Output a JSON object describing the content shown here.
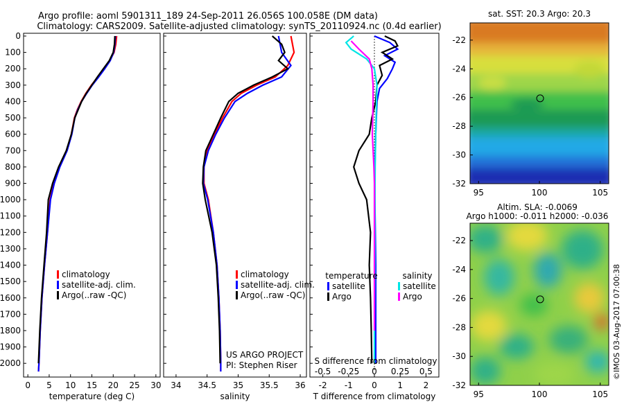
{
  "header": {
    "line1": "Argo profile: aoml 5901311_189 24-Sep-2011 26.056S 100.058E (DM data)",
    "line2": "Climatology: CARS2009. Satellite-adjusted climatology: synTS_20110924.nc (0.4d earlier)"
  },
  "footer_stamp": "©IMOS 03-Aug-2017 07:00:38",
  "colors": {
    "climatology": "#ff0000",
    "satellite": "#0000ff",
    "argo": "#000000",
    "s_satellite": "#00e5e5",
    "s_argo": "#ff00ff"
  },
  "chart_data": [
    {
      "type": "line",
      "panel": "temperature",
      "xlabel": "temperature (deg C)",
      "ylabel": "",
      "xlim": [
        -1,
        31
      ],
      "ylim": [
        2050,
        0
      ],
      "xticks": [
        "0",
        "5",
        "10",
        "15",
        "20",
        "25",
        "30"
      ],
      "yticks": [
        "0",
        "100",
        "200",
        "300",
        "400",
        "500",
        "600",
        "700",
        "800",
        "900",
        "1000",
        "1100",
        "1200",
        "1300",
        "1400",
        "1500",
        "1600",
        "1700",
        "1800",
        "1900",
        "2000"
      ],
      "legend": [
        "climatology",
        "satellite-adj. clim.",
        "Argo(..raw -QC)"
      ],
      "series": [
        {
          "name": "climatology",
          "color": "#ff0000",
          "points": [
            [
              20.8,
              0
            ],
            [
              20.6,
              50
            ],
            [
              20.2,
              100
            ],
            [
              19.2,
              150
            ],
            [
              17.8,
              200
            ],
            [
              16.4,
              250
            ],
            [
              14.9,
              300
            ],
            [
              13.6,
              350
            ],
            [
              12.5,
              400
            ],
            [
              11.6,
              450
            ],
            [
              10.9,
              500
            ],
            [
              10.2,
              600
            ],
            [
              9.1,
              700
            ],
            [
              7.4,
              800
            ],
            [
              6.1,
              900
            ],
            [
              5.2,
              1000
            ],
            [
              4.6,
              1200
            ],
            [
              3.9,
              1400
            ],
            [
              3.3,
              1600
            ],
            [
              2.9,
              1800
            ],
            [
              2.6,
              2000
            ],
            [
              2.5,
              2050
            ]
          ]
        },
        {
          "name": "satellite-adj. clim.",
          "color": "#0000ff",
          "points": [
            [
              20.5,
              0
            ],
            [
              20.4,
              50
            ],
            [
              20.1,
              100
            ],
            [
              19.3,
              150
            ],
            [
              18.0,
              200
            ],
            [
              16.6,
              250
            ],
            [
              15.1,
              300
            ],
            [
              13.8,
              350
            ],
            [
              12.6,
              400
            ],
            [
              11.7,
              450
            ],
            [
              11.0,
              500
            ],
            [
              10.3,
              600
            ],
            [
              9.2,
              700
            ],
            [
              7.5,
              800
            ],
            [
              6.2,
              900
            ],
            [
              5.3,
              1000
            ],
            [
              4.6,
              1200
            ],
            [
              3.9,
              1400
            ],
            [
              3.3,
              1600
            ],
            [
              2.9,
              1800
            ],
            [
              2.6,
              2000
            ],
            [
              2.5,
              2050
            ]
          ]
        },
        {
          "name": "Argo(..raw -QC)",
          "color": "#000000",
          "points": [
            [
              20.4,
              0
            ],
            [
              20.3,
              50
            ],
            [
              20.0,
              100
            ],
            [
              19.1,
              150
            ],
            [
              17.7,
              200
            ],
            [
              16.3,
              250
            ],
            [
              15.0,
              300
            ],
            [
              13.7,
              350
            ],
            [
              12.6,
              400
            ],
            [
              11.8,
              450
            ],
            [
              11.0,
              500
            ],
            [
              10.2,
              600
            ],
            [
              9.0,
              700
            ],
            [
              7.2,
              800
            ],
            [
              5.8,
              900
            ],
            [
              4.8,
              1000
            ],
            [
              4.4,
              1200
            ],
            [
              3.8,
              1400
            ],
            [
              3.2,
              1600
            ],
            [
              2.8,
              1800
            ],
            [
              2.5,
              2000
            ]
          ]
        }
      ]
    },
    {
      "type": "line",
      "panel": "salinity",
      "xlabel": "salinity",
      "xlim": [
        33.8,
        36.1
      ],
      "ylim": [
        2050,
        0
      ],
      "xticks": [
        "34",
        "34.5",
        "35",
        "35.5",
        "36"
      ],
      "legend": [
        "climatology",
        "satellite-adj. clim.",
        "Argo(..raw -QC)"
      ],
      "annotation": [
        "US ARGO PROJECT",
        "PI: Stephen Riser"
      ],
      "series": [
        {
          "name": "climatology",
          "color": "#ff0000",
          "points": [
            [
              35.85,
              0
            ],
            [
              35.9,
              100
            ],
            [
              35.8,
              180
            ],
            [
              35.6,
              250
            ],
            [
              35.3,
              300
            ],
            [
              35.05,
              350
            ],
            [
              34.9,
              400
            ],
            [
              34.75,
              500
            ],
            [
              34.62,
              600
            ],
            [
              34.5,
              700
            ],
            [
              34.45,
              800
            ],
            [
              34.45,
              900
            ],
            [
              34.52,
              1000
            ],
            [
              34.6,
              1200
            ],
            [
              34.66,
              1400
            ],
            [
              34.69,
              1600
            ],
            [
              34.71,
              1800
            ],
            [
              34.72,
              2000
            ],
            [
              34.72,
              2050
            ]
          ]
        },
        {
          "name": "satellite-adj. clim.",
          "color": "#0000ff",
          "points": [
            [
              35.65,
              0
            ],
            [
              35.7,
              100
            ],
            [
              35.85,
              180
            ],
            [
              35.7,
              250
            ],
            [
              35.4,
              300
            ],
            [
              35.15,
              350
            ],
            [
              34.95,
              400
            ],
            [
              34.78,
              500
            ],
            [
              34.64,
              600
            ],
            [
              34.52,
              700
            ],
            [
              34.45,
              800
            ],
            [
              34.44,
              900
            ],
            [
              34.51,
              1000
            ],
            [
              34.6,
              1200
            ],
            [
              34.66,
              1400
            ],
            [
              34.69,
              1600
            ],
            [
              34.71,
              1800
            ],
            [
              34.72,
              2000
            ],
            [
              34.72,
              2050
            ]
          ]
        },
        {
          "name": "Argo(..raw -QC)",
          "color": "#000000",
          "points": [
            [
              35.55,
              0
            ],
            [
              35.7,
              50
            ],
            [
              35.75,
              100
            ],
            [
              35.65,
              150
            ],
            [
              35.8,
              200
            ],
            [
              35.55,
              250
            ],
            [
              35.25,
              300
            ],
            [
              35.0,
              350
            ],
            [
              34.85,
              400
            ],
            [
              34.72,
              500
            ],
            [
              34.6,
              600
            ],
            [
              34.48,
              700
            ],
            [
              34.44,
              800
            ],
            [
              34.43,
              900
            ],
            [
              34.47,
              1000
            ],
            [
              34.58,
              1200
            ],
            [
              34.65,
              1400
            ],
            [
              34.68,
              1600
            ],
            [
              34.7,
              1800
            ],
            [
              34.71,
              2000
            ]
          ]
        }
      ]
    },
    {
      "type": "line",
      "panel": "difference",
      "xlabel": "T difference from climatology",
      "xlim": [
        -2.5,
        2.5
      ],
      "ylim": [
        2050,
        0
      ],
      "xticks": [
        "-2",
        "-1",
        "0",
        "1",
        "2"
      ],
      "s_label": "S difference from climatology",
      "s_ticks": [
        "-0.5",
        "-0.25",
        "0",
        "0.25",
        "0.5"
      ],
      "legend_headers": [
        "temperature",
        "salinity"
      ],
      "legend": [
        "satellite",
        "Argo",
        "satellite",
        "Argo"
      ],
      "series": [
        {
          "name": "satellite",
          "color": "#0000ff",
          "points": [
            [
              0,
              0
            ],
            [
              0.6,
              40
            ],
            [
              0.9,
              80
            ],
            [
              0.4,
              120
            ],
            [
              0.8,
              160
            ],
            [
              0.7,
              200
            ],
            [
              0.5,
              260
            ],
            [
              0.2,
              320
            ],
            [
              0.1,
              400
            ],
            [
              0.05,
              600
            ],
            [
              0.02,
              800
            ],
            [
              0.02,
              1000
            ],
            [
              0.05,
              1400
            ],
            [
              0.05,
              1800
            ],
            [
              0.05,
              2000
            ]
          ]
        },
        {
          "name": "Argo",
          "color": "#000000",
          "points": [
            [
              0.4,
              0
            ],
            [
              0.8,
              30
            ],
            [
              0.9,
              60
            ],
            [
              0.3,
              100
            ],
            [
              0.7,
              140
            ],
            [
              0.2,
              180
            ],
            [
              0.3,
              240
            ],
            [
              0.1,
              300
            ],
            [
              0.05,
              400
            ],
            [
              -0.1,
              500
            ],
            [
              -0.2,
              600
            ],
            [
              -0.6,
              700
            ],
            [
              -0.8,
              800
            ],
            [
              -0.6,
              900
            ],
            [
              -0.3,
              1000
            ],
            [
              -0.15,
              1200
            ],
            [
              -0.2,
              1400
            ],
            [
              -0.15,
              1600
            ],
            [
              -0.12,
              1800
            ],
            [
              -0.1,
              2000
            ]
          ]
        },
        {
          "name": "satellite",
          "color": "#00e5e5",
          "points": [
            [
              -0.8,
              0
            ],
            [
              -1.1,
              40
            ],
            [
              -0.9,
              80
            ],
            [
              -0.3,
              140
            ],
            [
              0,
              200
            ],
            [
              0.1,
              300
            ],
            [
              0.08,
              400
            ],
            [
              0.05,
              600
            ],
            [
              0.03,
              800
            ],
            [
              0.02,
              1000
            ],
            [
              0.02,
              1400
            ],
            [
              0.0,
              1800
            ],
            [
              0.0,
              2000
            ]
          ]
        },
        {
          "name": "Argo",
          "color": "#ff00ff",
          "points": [
            [
              -0.9,
              30
            ],
            [
              -0.6,
              80
            ],
            [
              -0.2,
              140
            ],
            [
              -0.1,
              200
            ],
            [
              -0.05,
              300
            ],
            [
              -0.05,
              400
            ],
            [
              -0.08,
              600
            ],
            [
              -0.02,
              800
            ],
            [
              0.0,
              900
            ],
            [
              0.0,
              1000
            ],
            [
              0.0,
              1400
            ],
            [
              0.0,
              1800
            ]
          ]
        }
      ]
    },
    {
      "type": "heatmap",
      "panel": "sst-map",
      "title": "sat. SST: 20.3  Argo: 20.3",
      "xlim": [
        94.3,
        105.7
      ],
      "ylim": [
        -32,
        -20.8
      ],
      "xticks": [
        "95",
        "100",
        "105"
      ],
      "yticks": [
        "-22",
        "-24",
        "-26",
        "-28",
        "-30",
        "-32"
      ],
      "marker": {
        "lon": 100.058,
        "lat": -26.056
      }
    },
    {
      "type": "heatmap",
      "panel": "sla-map",
      "title": "Altim. SLA: -0.0069",
      "subtitle": "Argo h1000: -0.011 h2000: -0.036",
      "xlim": [
        94.3,
        105.7
      ],
      "ylim": [
        -32,
        -20.8
      ],
      "xticks": [
        "95",
        "100",
        "105"
      ],
      "yticks": [
        "-22",
        "-24",
        "-26",
        "-28",
        "-30",
        "-32"
      ],
      "marker": {
        "lon": 100.058,
        "lat": -26.056
      }
    }
  ]
}
